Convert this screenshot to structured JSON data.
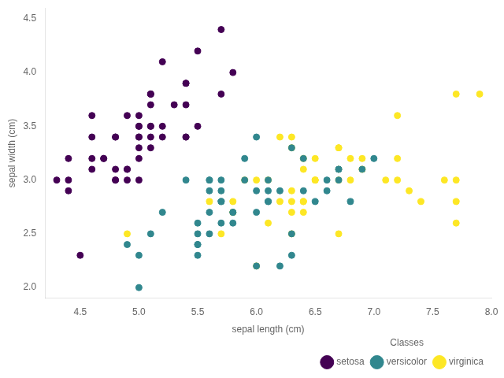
{
  "chart_data": {
    "type": "scatter",
    "xlabel": "sepal length (cm)",
    "ylabel": "sepal width (cm)",
    "xlim": [
      4.2,
      8.0
    ],
    "ylim": [
      1.9,
      4.6
    ],
    "xticks": [
      4.5,
      {
        "value": 5.0,
        "label": "5.0"
      },
      5.5,
      {
        "value": 6.0,
        "label": "6.0"
      },
      6.5,
      {
        "value": 7.0,
        "label": "7.0"
      },
      7.5,
      {
        "value": 8.0,
        "label": "8.0"
      }
    ],
    "yticks": [
      {
        "value": 2.0,
        "label": "2.0"
      },
      2.5,
      {
        "value": 3.0,
        "label": "3.0"
      },
      3.5,
      {
        "value": 4.0,
        "label": "4.0"
      },
      4.5
    ],
    "grid": false,
    "legend": "lower right",
    "legend_title": "Classes",
    "series": [
      {
        "name": "setosa",
        "color": "#440154",
        "x": [
          5.1,
          4.9,
          4.7,
          4.6,
          5.0,
          5.4,
          4.6,
          5.0,
          4.4,
          4.9,
          5.4,
          4.8,
          4.8,
          4.3,
          5.8,
          5.7,
          5.4,
          5.1,
          5.7,
          5.1,
          5.4,
          5.1,
          4.6,
          5.1,
          4.8,
          5.0,
          5.0,
          5.2,
          5.2,
          4.7,
          4.8,
          5.4,
          5.2,
          5.5,
          4.9,
          5.0,
          5.5,
          4.9,
          4.4,
          5.1,
          5.0,
          4.5,
          4.4,
          5.0,
          5.1,
          4.8,
          5.1,
          4.6,
          5.3,
          5.0
        ],
        "values": [
          3.5,
          3.0,
          3.2,
          3.1,
          3.6,
          3.9,
          3.4,
          3.4,
          2.9,
          3.1,
          3.7,
          3.4,
          3.0,
          3.0,
          4.0,
          4.4,
          3.9,
          3.5,
          3.8,
          3.8,
          3.4,
          3.7,
          3.6,
          3.3,
          3.4,
          3.0,
          3.4,
          3.5,
          3.4,
          3.2,
          3.1,
          3.4,
          4.1,
          4.2,
          3.1,
          3.2,
          3.5,
          3.6,
          3.0,
          3.4,
          3.5,
          2.3,
          3.2,
          3.5,
          3.8,
          3.0,
          3.8,
          3.2,
          3.7,
          3.3
        ]
      },
      {
        "name": "versicolor",
        "color": "#31878e",
        "x": [
          7.0,
          6.4,
          6.9,
          5.5,
          6.5,
          5.7,
          6.3,
          4.9,
          6.6,
          5.2,
          5.0,
          5.9,
          6.0,
          6.1,
          5.6,
          6.7,
          5.6,
          5.8,
          6.2,
          5.6,
          5.9,
          6.1,
          6.3,
          6.1,
          6.4,
          6.6,
          6.8,
          6.7,
          6.0,
          5.7,
          5.5,
          5.5,
          5.8,
          6.0,
          5.4,
          6.0,
          6.7,
          6.3,
          5.6,
          5.5,
          5.5,
          6.1,
          5.8,
          5.0,
          5.6,
          5.7,
          5.7,
          6.2,
          5.1,
          5.7
        ],
        "values": [
          3.2,
          3.2,
          3.1,
          2.3,
          2.8,
          2.8,
          3.3,
          2.4,
          2.9,
          2.7,
          2.0,
          3.0,
          2.2,
          2.9,
          2.9,
          3.1,
          3.0,
          2.7,
          2.2,
          2.5,
          3.2,
          2.8,
          2.5,
          2.8,
          2.9,
          3.0,
          2.8,
          3.0,
          2.9,
          2.6,
          2.4,
          2.4,
          2.7,
          2.7,
          3.0,
          3.4,
          3.1,
          2.3,
          3.0,
          2.5,
          2.6,
          3.0,
          2.6,
          2.3,
          2.7,
          3.0,
          2.9,
          2.9,
          2.5,
          2.8
        ]
      },
      {
        "name": "virginica",
        "color": "#fde725",
        "x": [
          6.3,
          5.8,
          7.1,
          6.3,
          6.5,
          7.6,
          4.9,
          7.3,
          6.7,
          7.2,
          6.5,
          6.4,
          6.8,
          5.7,
          5.8,
          6.4,
          6.5,
          7.7,
          7.7,
          6.0,
          6.9,
          5.6,
          7.7,
          6.3,
          6.7,
          7.2,
          6.2,
          6.1,
          6.4,
          7.2,
          7.4,
          7.9,
          6.4,
          6.3,
          6.1,
          7.7,
          6.3,
          6.4,
          6.0,
          6.9,
          6.7,
          6.9,
          5.8,
          6.8,
          6.7,
          6.7,
          6.3,
          6.5,
          6.2,
          5.9
        ],
        "values": [
          3.3,
          2.7,
          3.0,
          2.9,
          3.0,
          3.0,
          2.5,
          2.9,
          2.5,
          3.6,
          3.2,
          2.7,
          3.0,
          2.5,
          2.8,
          3.2,
          3.0,
          3.8,
          2.6,
          2.2,
          3.2,
          2.8,
          2.8,
          2.7,
          3.3,
          3.2,
          2.8,
          3.0,
          2.8,
          3.0,
          2.8,
          3.8,
          2.8,
          2.8,
          2.6,
          3.0,
          3.4,
          3.1,
          3.0,
          3.1,
          3.1,
          3.1,
          2.7,
          3.2,
          3.3,
          3.0,
          2.5,
          3.0,
          3.4,
          3.0
        ]
      }
    ]
  }
}
